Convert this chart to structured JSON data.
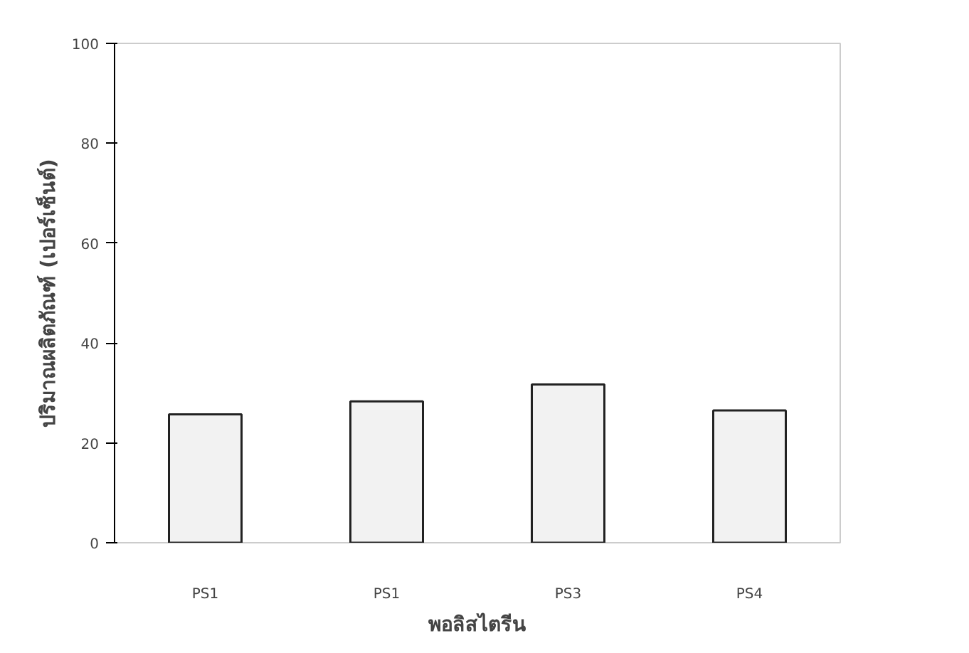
{
  "chart_data": {
    "type": "bar",
    "xlabel": "พอลิสไตรีน",
    "ylabel": "ปริมาณผลิตภัณฑ์ (เปอร์เซ็นต์)",
    "categories": [
      "PS1",
      "PS1",
      "PS3",
      "PS4"
    ],
    "values": [
      25.7,
      28.3,
      31.7,
      26.5
    ],
    "color": "#f2f2f2",
    "ylim": [
      0,
      100
    ],
    "yticks": [
      0,
      20,
      40,
      60,
      80,
      100
    ],
    "grid": false
  }
}
